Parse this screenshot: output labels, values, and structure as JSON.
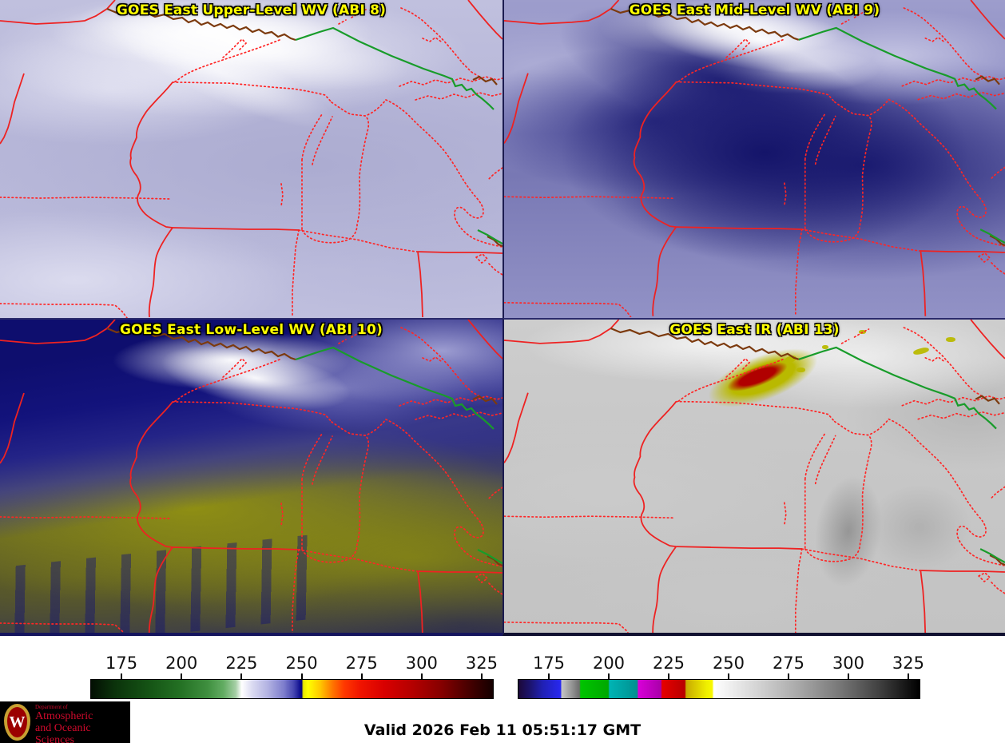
{
  "product": {
    "panels": [
      {
        "title": "GOES East Upper-Level WV (ABI 8)"
      },
      {
        "title": "GOES East Mid-Level WV (ABI 9)"
      },
      {
        "title": "GOES East Low-Level WV (ABI 10)"
      },
      {
        "title": "GOES East IR (ABI 13)"
      }
    ]
  },
  "colorbars": [
    {
      "name": "wv-colorbar",
      "ticks": [
        "175",
        "200",
        "225",
        "250",
        "275",
        "300",
        "325"
      ],
      "gradient": [
        [
          "#030f03",
          0
        ],
        [
          "#0b330b",
          6
        ],
        [
          "#145214",
          14
        ],
        [
          "#237023",
          22
        ],
        [
          "#3f8f3f",
          29
        ],
        [
          "#63ad63",
          33
        ],
        [
          "#a6cfa6",
          36
        ],
        [
          "#ffffff",
          37.5
        ],
        [
          "#dcdcf2",
          40
        ],
        [
          "#b2b2e2",
          44
        ],
        [
          "#7d7dcc",
          48
        ],
        [
          "#4444b0",
          50.5
        ],
        [
          "#101090",
          52
        ],
        [
          "#000078",
          52.4
        ],
        [
          "#e8e800",
          52.8
        ],
        [
          "#ffff00",
          54
        ],
        [
          "#ffc800",
          57
        ],
        [
          "#ff7800",
          60
        ],
        [
          "#ff3800",
          63
        ],
        [
          "#f01400",
          67
        ],
        [
          "#d80000",
          73
        ],
        [
          "#b40000",
          80
        ],
        [
          "#870000",
          87
        ],
        [
          "#500000",
          93
        ],
        [
          "#140000",
          100
        ]
      ]
    },
    {
      "name": "ir-colorbar",
      "ticks": [
        "175",
        "200",
        "225",
        "250",
        "275",
        "300",
        "325"
      ],
      "gradient": [
        [
          "#1c0838",
          0
        ],
        [
          "#1c1470",
          3
        ],
        [
          "#2020b4",
          6
        ],
        [
          "#2828f0",
          10.5
        ],
        [
          "#c4c4c4",
          10.8
        ],
        [
          "#9a9a9a",
          13
        ],
        [
          "#6e6e6e",
          15.2
        ],
        [
          "#00c400",
          15.5
        ],
        [
          "#00a800",
          22.4
        ],
        [
          "#00b4b4",
          22.7
        ],
        [
          "#009090",
          29.6
        ],
        [
          "#d800d8",
          29.9
        ],
        [
          "#aa00aa",
          35.5
        ],
        [
          "#e60000",
          35.8
        ],
        [
          "#b80000",
          41.5
        ],
        [
          "#c8aa00",
          41.8
        ],
        [
          "#f0f000",
          47
        ],
        [
          "#f8f800",
          48.3
        ],
        [
          "#ffffff",
          48.7
        ],
        [
          "#d2d2d2",
          60
        ],
        [
          "#a8a8a8",
          70
        ],
        [
          "#787878",
          80
        ],
        [
          "#404040",
          90
        ],
        [
          "#000000",
          100
        ]
      ]
    }
  ],
  "footer": {
    "valid_label": "Valid 2026 Feb 11 05:51:17 GMT"
  },
  "logo": {
    "department": "Department of",
    "line1": "Atmospheric",
    "line2": "and Oceanic Sciences",
    "monogram": "W"
  },
  "colors": {
    "title": "#ffff00",
    "map_dotted": "#ff2626",
    "map_solid_red": "#ee2222",
    "map_brown": "#7c3a0e",
    "map_green": "#189c2a",
    "storm_core": "#b00000",
    "storm_ring": "#b9b900",
    "logo_bg": "#000000",
    "logo_text": "#cf0a2c",
    "crest_gold": "#c8a032",
    "crest_red": "#9b0000"
  }
}
